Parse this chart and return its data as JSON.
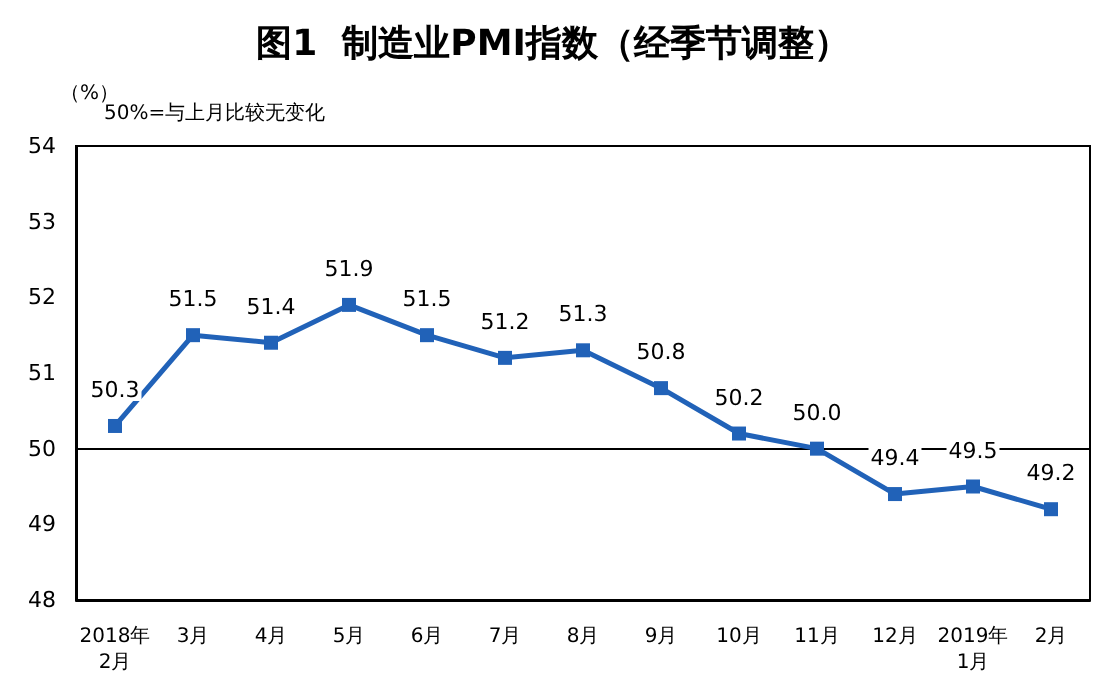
{
  "chart_data": {
    "type": "line",
    "title": "图1  制造业PMI指数（经季节调整）",
    "ylabel": "（%）",
    "annotations": [
      "50%=与上月比较无变化"
    ],
    "categories": [
      "2018年\n2月",
      "3月",
      "4月",
      "5月",
      "6月",
      "7月",
      "8月",
      "9月",
      "10月",
      "11月",
      "12月",
      "2019年\n1月",
      "2月"
    ],
    "series": [
      {
        "color": "#2162b8",
        "values": [
          50.3,
          51.5,
          51.4,
          51.9,
          51.5,
          51.2,
          51.3,
          50.8,
          50.2,
          50.0,
          49.4,
          49.5,
          49.2
        ]
      }
    ],
    "value_labels": [
      "50.3",
      "51.5",
      "51.4",
      "51.9",
      "51.5",
      "51.2",
      "51.3",
      "50.8",
      "50.2",
      "50.0",
      "49.4",
      "49.5",
      "49.2"
    ],
    "ylim": [
      48,
      54
    ],
    "yticks": [
      48,
      49,
      50,
      51,
      52,
      53,
      54
    ],
    "ref_lines": [
      {
        "axis": "y",
        "value": 50,
        "color": "#000000"
      }
    ],
    "marker": "square",
    "line_style": "solid",
    "grid": false
  }
}
